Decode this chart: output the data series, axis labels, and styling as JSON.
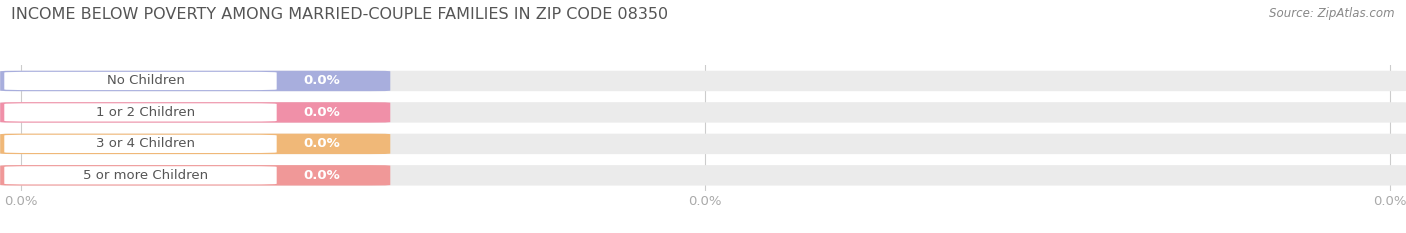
{
  "title": "INCOME BELOW POVERTY AMONG MARRIED-COUPLE FAMILIES IN ZIP CODE 08350",
  "source": "Source: ZipAtlas.com",
  "categories": [
    "No Children",
    "1 or 2 Children",
    "3 or 4 Children",
    "5 or more Children"
  ],
  "values": [
    0.0,
    0.0,
    0.0,
    0.0
  ],
  "bar_colors": [
    "#a8aedd",
    "#f090a8",
    "#f0b878",
    "#f09898"
  ],
  "bar_bg_color": "#ebebeb",
  "background_color": "#ffffff",
  "title_fontsize": 11.5,
  "label_fontsize": 9.5,
  "value_fontsize": 9.5,
  "bar_height": 0.62,
  "title_color": "#555555",
  "label_color": "#555555",
  "source_color": "#888888",
  "tick_color": "#aaaaaa",
  "white_oval_color": "#ffffff",
  "grid_color": "#cccccc"
}
